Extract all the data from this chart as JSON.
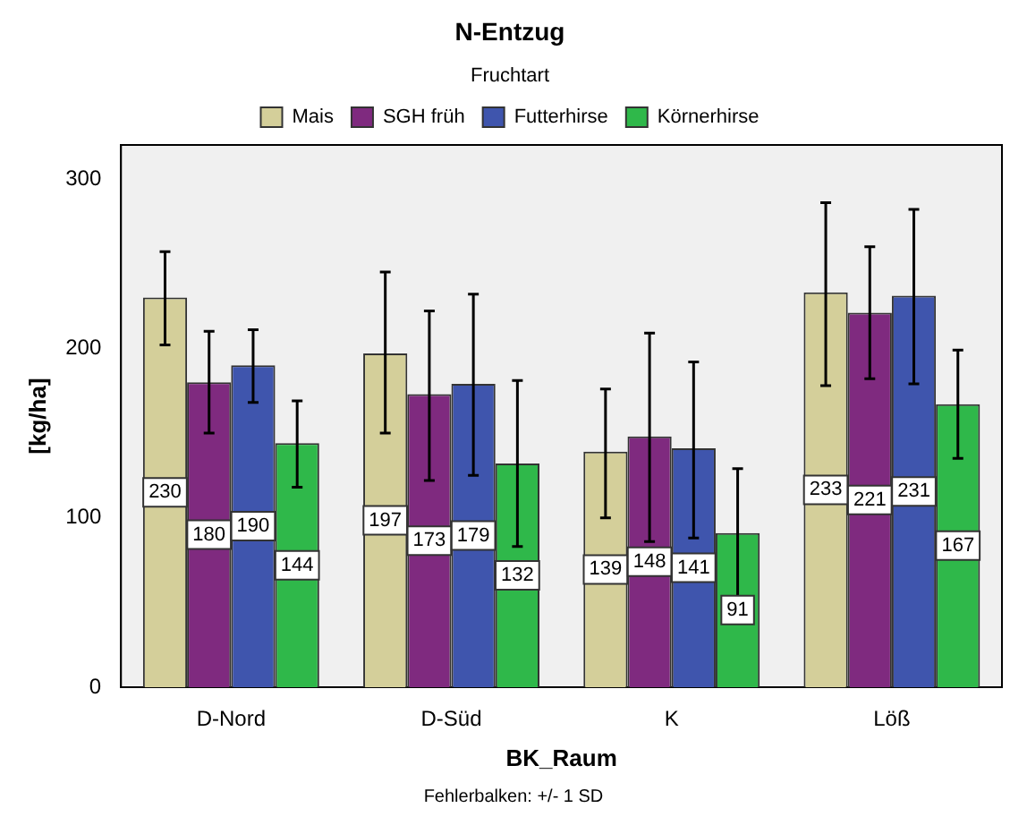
{
  "chart_data": {
    "type": "bar",
    "title": "N-Entzug",
    "xlabel": "BK_Raum",
    "ylabel": "[kg/ha]",
    "legend_title": "Fruchtart",
    "legend": "top",
    "grid": false,
    "data_labels": true,
    "categories": [
      "D-Nord",
      "D-Süd",
      "K",
      "Löß"
    ],
    "ylim": [
      0,
      320
    ],
    "yticks": [
      0,
      100,
      200,
      300
    ],
    "series": [
      {
        "name": "Mais",
        "color": "#d4cf9a",
        "values": [
          230,
          197,
          139,
          233
        ],
        "errors": [
          [
            202,
            257
          ],
          [
            150,
            245
          ],
          [
            100,
            176
          ],
          [
            178,
            286
          ]
        ]
      },
      {
        "name": "SGH früh",
        "color": "#7f2a7f",
        "values": [
          180,
          173,
          148,
          221
        ],
        "errors": [
          [
            150,
            210
          ],
          [
            122,
            222
          ],
          [
            86,
            209
          ],
          [
            182,
            260
          ]
        ]
      },
      {
        "name": "Futterhirse",
        "color": "#3f55ad",
        "values": [
          190,
          179,
          141,
          231
        ],
        "errors": [
          [
            168,
            211
          ],
          [
            125,
            232
          ],
          [
            88,
            192
          ],
          [
            179,
            282
          ]
        ]
      },
      {
        "name": "Körnerhirse",
        "color": "#2fb84a",
        "values": [
          144,
          132,
          91,
          167
        ],
        "errors": [
          [
            118,
            169
          ],
          [
            83,
            181
          ],
          [
            52,
            129
          ],
          [
            135,
            199
          ]
        ]
      }
    ],
    "annotations": [
      "Fehlerbalken: +/- 1 SD"
    ]
  }
}
